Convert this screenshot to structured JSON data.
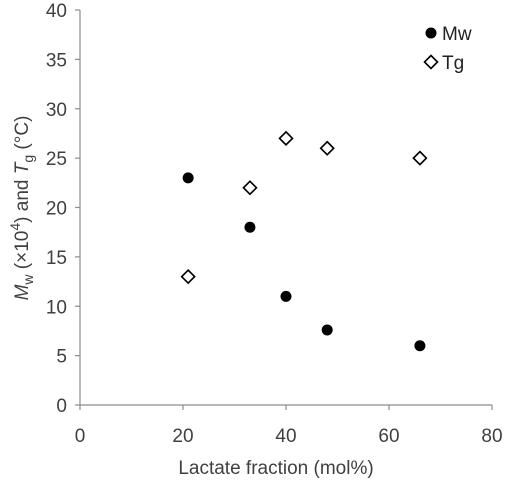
{
  "chart_data": {
    "type": "scatter",
    "xlabel": "Lactate fraction (mol%)",
    "ylabel": {
      "m": "M",
      "m_sub": "w",
      "middle_prefix": " (×10",
      "middle_sup": "4",
      "middle_suffix": ") and ",
      "t": "T",
      "t_sub": "g",
      "unit": " (°C)"
    },
    "xlim": [
      0,
      80
    ],
    "ylim": [
      0,
      40
    ],
    "x_ticks": [
      "0",
      "20",
      "40",
      "60",
      "80"
    ],
    "y_ticks": [
      "0",
      "5",
      "10",
      "15",
      "20",
      "25",
      "30",
      "35",
      "40"
    ],
    "grid": false,
    "legend_position": "top-right",
    "series": [
      {
        "name": "Mw",
        "marker": "filled-circle",
        "color": "#000000",
        "x": [
          21,
          33,
          40,
          48,
          66
        ],
        "y": [
          23,
          18,
          11,
          7.6,
          6
        ]
      },
      {
        "name": "Tg",
        "marker": "open-diamond",
        "color": "#000000",
        "x": [
          21,
          33,
          40,
          48,
          66
        ],
        "y": [
          13,
          22,
          27,
          26,
          25
        ]
      }
    ]
  }
}
